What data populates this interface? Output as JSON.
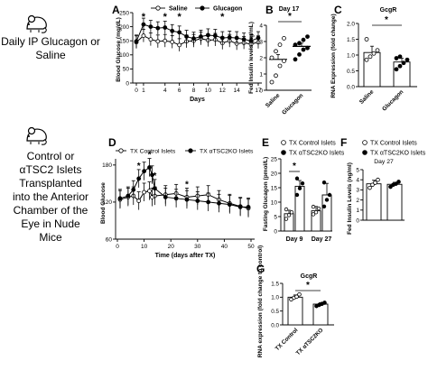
{
  "left_labels": {
    "top": [
      "Daily IP Glucagon or",
      "Saline"
    ],
    "bottom": [
      "Control or",
      "αTSC2 Islets",
      "Transplanted",
      "into the Anterior",
      "Chamber of the",
      "Eye in Nude",
      "Mice"
    ]
  },
  "chart_data": [
    {
      "id": "A",
      "type": "line",
      "xlabel": "Days",
      "ylabel": "Blood Glucose (mg/dL)",
      "ylim": [
        0,
        250
      ],
      "yticks": [
        0,
        50,
        100,
        150,
        200,
        250
      ],
      "xlim": [
        0,
        17
      ],
      "xticks": [
        "0",
        "1",
        "4",
        "6",
        "8",
        "10",
        "12",
        "14",
        "17"
      ],
      "x": [
        0,
        1,
        2,
        3,
        4,
        5,
        6,
        7,
        8,
        9,
        10,
        11,
        12,
        13,
        14,
        15,
        16,
        17
      ],
      "series": [
        {
          "name": "Saline",
          "marker": "open",
          "values": [
            145,
            168,
            155,
            148,
            150,
            146,
            135,
            148,
            150,
            158,
            152,
            154,
            142,
            150,
            140,
            143,
            138,
            145
          ]
        },
        {
          "name": "Glucagon",
          "marker": "filled",
          "values": [
            148,
            208,
            200,
            195,
            197,
            185,
            180,
            165,
            158,
            165,
            170,
            168,
            160,
            162,
            160,
            155,
            150,
            160
          ]
        }
      ],
      "significance": [
        {
          "x": 1,
          "label": "*"
        },
        {
          "x": 4,
          "label": "*"
        },
        {
          "x": 6,
          "label": "*"
        },
        {
          "x": 12,
          "label": "*"
        }
      ]
    },
    {
      "id": "B",
      "type": "bar",
      "title": "Day 17",
      "ylabel": "Fed Insulin levels (ng/mL)",
      "ylim": [
        0,
        4
      ],
      "yticks": [
        0,
        1,
        2,
        3,
        4
      ],
      "categories": [
        "Saline",
        "Glucagon"
      ],
      "values": [
        1.9,
        2.7
      ],
      "errors": [
        0.3,
        0.2
      ],
      "points": [
        [
          0.5,
          0.9,
          1.5,
          1.8,
          2.0,
          2.4,
          2.8,
          3.2
        ],
        [
          1.9,
          2.2,
          2.5,
          2.6,
          2.8,
          2.9,
          3.1,
          3.3
        ]
      ],
      "significance": [
        {
          "pair": [
            0,
            1
          ],
          "label": "*"
        }
      ]
    },
    {
      "id": "C",
      "type": "bar",
      "title": "GcgR",
      "ylabel": "RNA Expression (fold change)",
      "ylim": [
        0,
        2.0
      ],
      "yticks": [
        0.0,
        0.5,
        1.0,
        1.5,
        2.0
      ],
      "categories": [
        "Saline",
        "Glucagon"
      ],
      "values": [
        1.08,
        0.78
      ],
      "errors": [
        0.2,
        0.12
      ],
      "points": [
        [
          0.85,
          0.95,
          1.05,
          1.15,
          1.5
        ],
        [
          0.55,
          0.65,
          0.75,
          0.85,
          0.9,
          0.95
        ]
      ],
      "significance": [
        {
          "pair": [
            0,
            1
          ],
          "label": "*"
        }
      ]
    },
    {
      "id": "D",
      "type": "line",
      "xlabel": "Time (days after TX)",
      "ylabel": "Blood Glucose",
      "ylim": [
        60,
        190
      ],
      "yticks": [
        60,
        120,
        180
      ],
      "xlim": [
        0,
        50
      ],
      "xticks": [
        0,
        10,
        20,
        30,
        40,
        50
      ],
      "x": [
        1,
        4,
        6,
        8,
        10,
        12,
        13,
        14,
        18,
        22,
        26,
        30,
        34,
        38,
        42,
        46,
        49
      ],
      "series": [
        {
          "name": "TX Control Islets",
          "marker": "open",
          "values": [
            124,
            128,
            130,
            122,
            136,
            138,
            128,
            130,
            132,
            134,
            128,
            130,
            132,
            124,
            118,
            113,
            110
          ]
        },
        {
          "name": "TX αTSC2KO Islets",
          "marker": "filled",
          "values": [
            126,
            130,
            140,
            158,
            170,
            176,
            164,
            142,
            128,
            126,
            124,
            122,
            120,
            118,
            116,
            112,
            112
          ]
        }
      ],
      "significance": [
        {
          "x": 8,
          "label": "*"
        },
        {
          "x": 12,
          "label": "*"
        },
        {
          "x": 14,
          "label": "*"
        },
        {
          "x": 26,
          "label": "*"
        }
      ]
    },
    {
      "id": "E",
      "type": "bar",
      "ylabel": "Fasting Glucagon (pmol/L)",
      "ylim": [
        0,
        25
      ],
      "yticks": [
        0,
        5,
        10,
        15,
        20,
        25
      ],
      "categories": [
        "Day 9",
        "Day 27"
      ],
      "series": [
        {
          "name": "TX Control Islets",
          "values": [
            6,
            7
          ],
          "errors": [
            1.2,
            1.5
          ],
          "points": [
            [
              4.2,
              5.5,
              6.5,
              7.5
            ],
            [
              5.8,
              6.5,
              7.8,
              8.4
            ]
          ]
        },
        {
          "name": "TX αTSC2KO Islets",
          "values": [
            15.5,
            12.5
          ],
          "errors": [
            2.0,
            4.0
          ],
          "points": [
            [
              12.5,
              14.8,
              16.5,
              18.2
            ],
            [
              8.5,
              10.8,
              12.5,
              16.8
            ]
          ]
        }
      ],
      "significance": [
        {
          "category": 0,
          "label": "*"
        }
      ]
    },
    {
      "id": "F",
      "type": "bar",
      "title": "Day 27",
      "ylabel": "Fed Insulin Levels (ng/ml)",
      "ylim": [
        0,
        5
      ],
      "yticks": [
        0,
        1,
        2,
        3,
        4,
        5
      ],
      "series": [
        {
          "name": "TX Control Islets",
          "values": [
            3.6
          ],
          "errors": [
            0.35
          ],
          "points": [
            3.2,
            3.5,
            3.7,
            4.0
          ]
        },
        {
          "name": "TX αTSC2KO Islets",
          "values": [
            3.55
          ],
          "errors": [
            0.2
          ],
          "points": [
            3.3,
            3.5,
            3.6,
            3.8
          ]
        }
      ]
    },
    {
      "id": "G",
      "type": "bar",
      "title": "GcgR",
      "ylabel": "RNA expression (fold change to control)",
      "ylim": [
        0,
        1.5
      ],
      "yticks": [
        0.0,
        0.5,
        1.0,
        1.5
      ],
      "categories": [
        "TX Control",
        "TX αTSC2KO"
      ],
      "values": [
        1.0,
        0.75
      ],
      "errors": [
        0.08,
        0.05
      ],
      "points": [
        [
          0.92,
          0.98,
          1.02,
          1.1
        ],
        [
          0.68,
          0.72,
          0.76,
          0.8
        ]
      ],
      "significance": [
        {
          "pair": [
            0,
            1
          ],
          "label": "*"
        }
      ]
    }
  ]
}
